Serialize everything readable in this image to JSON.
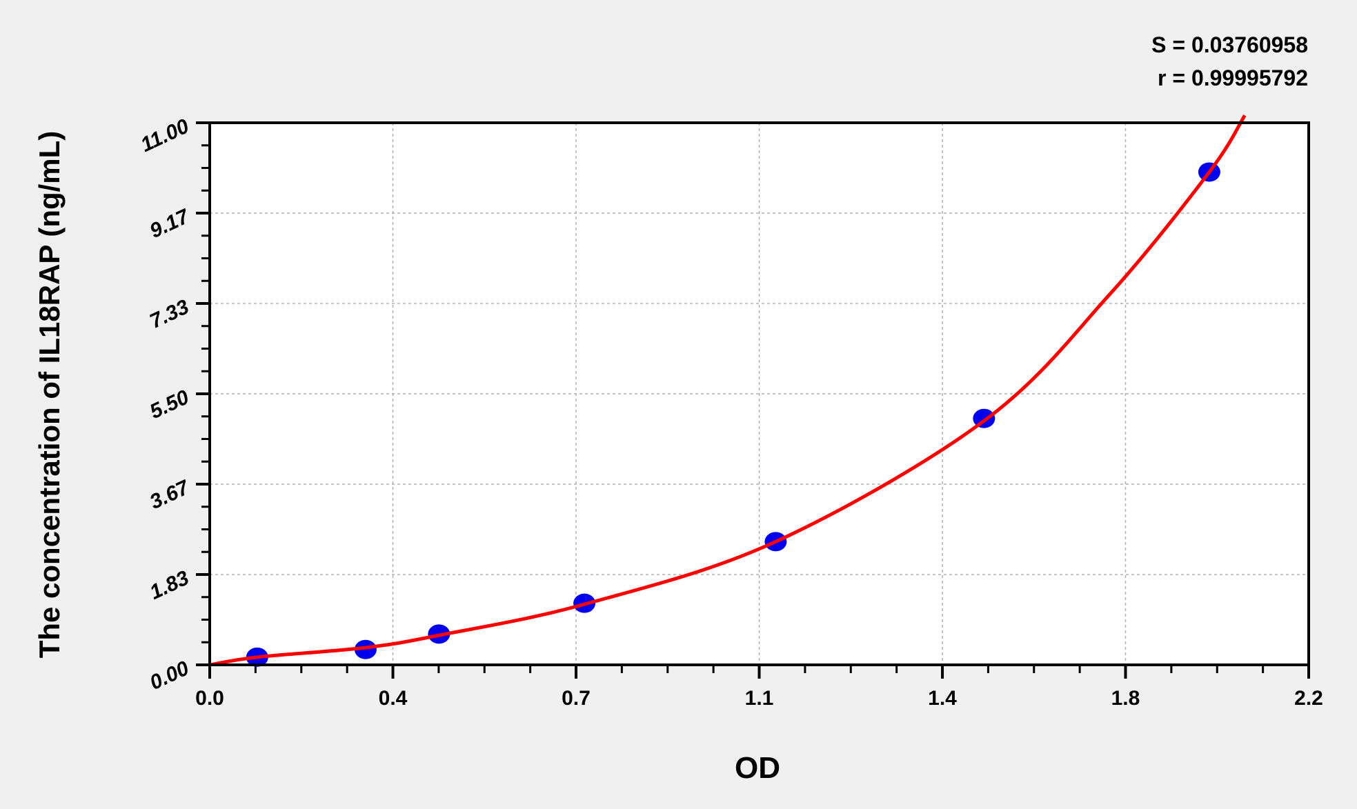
{
  "chart_data": {
    "type": "scatter",
    "title": "",
    "xlabel": "OD",
    "ylabel": "The concentration of IL18RAP (ng/mL)",
    "xlim": [
      0,
      2.2
    ],
    "ylim": [
      0,
      11
    ],
    "x_ticks": [
      0,
      0.3667,
      0.7333,
      1.1,
      1.4667,
      1.8333,
      2.2
    ],
    "x_tick_labels": [
      "0.0",
      "0.4",
      "0.7",
      "1.1",
      "1.4",
      "1.8",
      "2.2"
    ],
    "y_ticks": [
      0,
      1.8333,
      3.6667,
      5.5,
      7.3333,
      9.1667,
      11
    ],
    "y_tick_labels": [
      "0.00",
      "1.83",
      "3.67",
      "5.50",
      "7.33",
      "9.17",
      "11.00"
    ],
    "grid": true,
    "annotations": [
      "S = 0.03760958",
      "r = 0.99995792"
    ],
    "series": [
      {
        "type": "scatter",
        "color": "#0000ee",
        "x": [
          0.095,
          0.312,
          0.459,
          0.75,
          1.133,
          1.55,
          2.001
        ],
        "y": [
          0.156,
          0.312,
          0.625,
          1.25,
          2.5,
          5.0,
          10.0
        ]
      },
      {
        "type": "line",
        "color": "#ff0000",
        "x": [
          0,
          0.095,
          0.312,
          0.459,
          0.75,
          1.133,
          1.55,
          1.8,
          2.001,
          2.072
        ],
        "y": [
          0,
          0.156,
          0.35,
          0.6,
          1.23,
          2.5,
          4.95,
          7.5,
          10.0,
          11.15
        ]
      }
    ]
  }
}
